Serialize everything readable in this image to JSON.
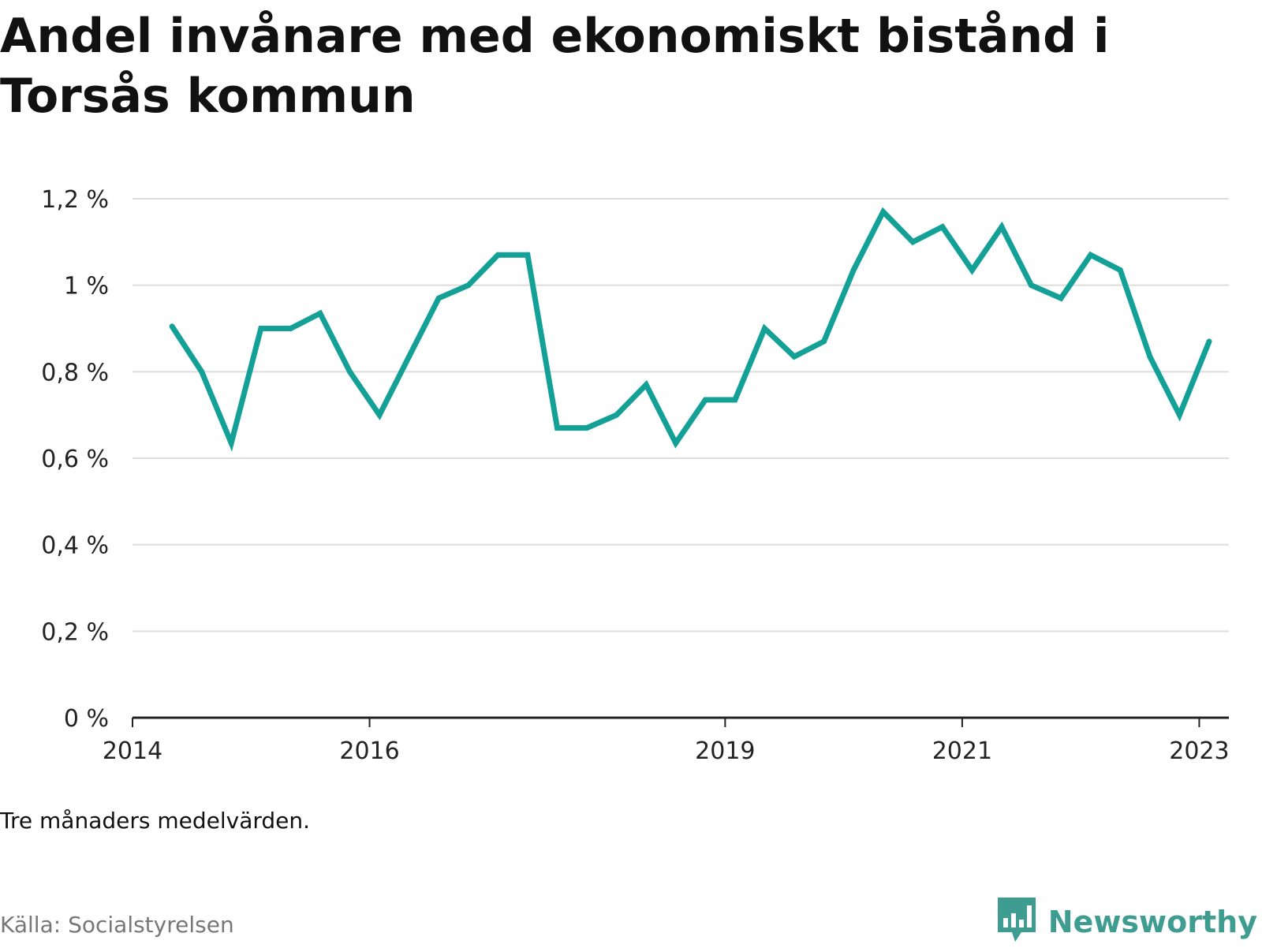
{
  "title": "Andel invånare med ekonomiskt bistånd i Torsås kommun",
  "note": "Tre månaders medelvärden.",
  "source": "Källa: Socialstyrelsen",
  "brand": {
    "name": "Newsworthy",
    "logo_icon": "bar-chart-speech-bubble-icon"
  },
  "colors": {
    "line": "#13a197",
    "grid": "#dddddd",
    "axis": "#222222",
    "brand": "#3f9c91"
  },
  "chart_data": {
    "type": "line",
    "title": "Andel invånare med ekonomiskt bistånd i Torsås kommun",
    "xlabel": "",
    "ylabel": "",
    "unit": "%",
    "xlim": [
      2014.0,
      2023.25
    ],
    "ylim": [
      0,
      1.2
    ],
    "y_ticks": [
      {
        "value": 0,
        "label": "0 %"
      },
      {
        "value": 0.2,
        "label": "0,2 %"
      },
      {
        "value": 0.4,
        "label": "0,4 %"
      },
      {
        "value": 0.6,
        "label": "0,6 %"
      },
      {
        "value": 0.8,
        "label": "0,8 %"
      },
      {
        "value": 1.0,
        "label": "1 %"
      },
      {
        "value": 1.2,
        "label": "1,2 %"
      }
    ],
    "x_ticks": [
      {
        "value": 2014,
        "label": "2014"
      },
      {
        "value": 2016,
        "label": "2016"
      },
      {
        "value": 2019,
        "label": "2019"
      },
      {
        "value": 2021,
        "label": "2021"
      },
      {
        "value": 2023,
        "label": "2023"
      }
    ],
    "grid": true,
    "legend": "none",
    "series": [
      {
        "x": [
          "2014-05",
          "2014-08",
          "2014-11",
          "2015-02",
          "2015-05",
          "2015-08",
          "2015-11",
          "2016-02",
          "2016-05",
          "2016-08",
          "2016-11",
          "2017-02",
          "2017-05",
          "2017-08",
          "2017-11",
          "2018-02",
          "2018-05",
          "2018-08",
          "2018-11",
          "2019-02",
          "2019-05",
          "2019-08",
          "2019-11",
          "2020-02",
          "2020-05",
          "2020-08",
          "2020-11",
          "2021-02",
          "2021-05",
          "2021-08",
          "2021-11",
          "2022-02",
          "2022-05",
          "2022-08",
          "2022-11",
          "2023-02"
        ],
        "values": [
          0.905,
          0.8,
          0.635,
          0.9,
          0.9,
          0.935,
          0.8,
          0.7,
          0.835,
          0.97,
          1.0,
          1.07,
          1.07,
          0.67,
          0.67,
          0.7,
          0.77,
          0.635,
          0.735,
          0.735,
          0.9,
          0.835,
          0.87,
          1.035,
          1.17,
          1.1,
          1.135,
          1.035,
          1.135,
          1.0,
          0.97,
          1.07,
          1.035,
          0.835,
          0.7,
          0.87
        ]
      }
    ]
  }
}
